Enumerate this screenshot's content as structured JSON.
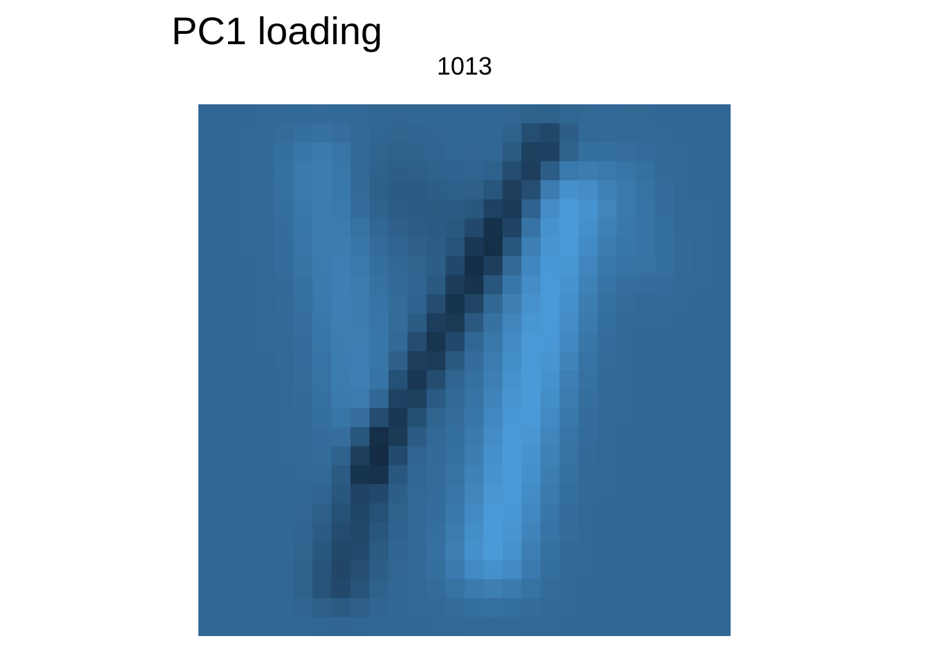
{
  "chart_data": {
    "type": "heatmap",
    "title": "PC1 loading",
    "subtitle": "1013",
    "rows": 28,
    "cols": 28,
    "colormap": {
      "low": "#132B43",
      "high": "#56B1F7",
      "background": "#285781"
    },
    "background_value": 0.45,
    "blobs": [
      {
        "kind": "dark",
        "x1": 18.2,
        "y1": 2.2,
        "x2": 9.0,
        "y2": 19.0,
        "sigma": 0.85,
        "amp": -0.38
      },
      {
        "kind": "dark",
        "x1": 9.5,
        "y1": 18.0,
        "x2": 7.5,
        "y2": 25.0,
        "sigma": 1.1,
        "amp": -0.25
      },
      {
        "kind": "light",
        "x1": 19.5,
        "y1": 5.5,
        "x2": 15.5,
        "y2": 23.5,
        "sigma": 1.6,
        "amp": 0.38
      },
      {
        "kind": "light",
        "x1": 6.5,
        "y1": 3.5,
        "x2": 9.0,
        "y2": 18.0,
        "sigma": 1.5,
        "amp": 0.18
      },
      {
        "kind": "dark",
        "x1": 10.0,
        "y1": 4.5,
        "x2": 15.0,
        "y2": 7.5,
        "sigma": 1.8,
        "amp": -0.09
      },
      {
        "kind": "light",
        "x1": 22.5,
        "y1": 4.0,
        "x2": 23.5,
        "y2": 8.0,
        "sigma": 1.3,
        "amp": 0.08
      }
    ]
  }
}
